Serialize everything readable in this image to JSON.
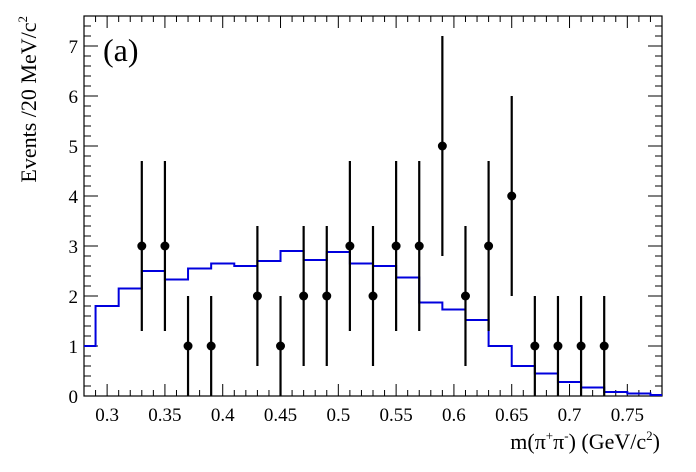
{
  "chart_data": {
    "type": "scatter",
    "panel_label": "(a)",
    "xlabel": {
      "base": "m(",
      "pi1": "π",
      "sup1": "+",
      "pi2": "π",
      "sup2": "-",
      "after": ") (GeV/c",
      "sup3": "2",
      "close": ")"
    },
    "ylabel": {
      "base": "Events /20 MeV/c",
      "sup": "2"
    },
    "xlim": [
      0.28,
      0.78
    ],
    "ylim": [
      0,
      7.6
    ],
    "x_ticks": [
      0.3,
      0.35,
      0.4,
      0.45,
      0.5,
      0.55,
      0.6,
      0.65,
      0.7,
      0.75
    ],
    "x_tick_labels": [
      "0.3",
      "0.35",
      "0.4",
      "0.45",
      "0.5",
      "0.55",
      "0.6",
      "0.65",
      "0.7",
      "0.75"
    ],
    "y_ticks": [
      0,
      1,
      2,
      3,
      4,
      5,
      6,
      7
    ],
    "y_tick_labels": [
      "0",
      "1",
      "2",
      "3",
      "4",
      "5",
      "6",
      "7"
    ],
    "grid": false,
    "colors": {
      "data": "#000000",
      "histogram": "#0000dd",
      "frame": "#000000"
    },
    "series": [
      {
        "type": "errorbar",
        "x": [
          0.33,
          0.35,
          0.37,
          0.39,
          0.43,
          0.45,
          0.47,
          0.49,
          0.51,
          0.53,
          0.55,
          0.57,
          0.59,
          0.61,
          0.63,
          0.65,
          0.67,
          0.69,
          0.71,
          0.73
        ],
        "y": [
          3,
          3,
          1,
          1,
          2,
          1,
          2,
          2,
          3,
          2,
          3,
          3,
          5,
          2,
          3,
          4,
          1,
          1,
          1,
          1
        ],
        "err_low": [
          1.7,
          1.7,
          1.0,
          1.0,
          1.4,
          1.0,
          1.4,
          1.4,
          1.7,
          1.4,
          1.7,
          1.7,
          2.2,
          1.4,
          1.7,
          2.0,
          1.0,
          1.0,
          1.0,
          1.0
        ],
        "err_high": [
          1.7,
          1.7,
          1.0,
          1.0,
          1.4,
          1.0,
          1.4,
          1.4,
          1.7,
          1.4,
          1.7,
          1.7,
          2.2,
          1.4,
          1.7,
          2.0,
          1.0,
          1.0,
          1.0,
          1.0
        ]
      },
      {
        "type": "step-histogram",
        "bin_edges": [
          0.28,
          0.29,
          0.31,
          0.33,
          0.35,
          0.37,
          0.39,
          0.41,
          0.43,
          0.45,
          0.47,
          0.49,
          0.51,
          0.53,
          0.55,
          0.57,
          0.59,
          0.61,
          0.63,
          0.65,
          0.67,
          0.69,
          0.71,
          0.73,
          0.75,
          0.77,
          0.78
        ],
        "values": [
          1.0,
          1.8,
          2.15,
          2.5,
          2.33,
          2.55,
          2.65,
          2.6,
          2.7,
          2.9,
          2.72,
          2.88,
          2.65,
          2.6,
          2.37,
          1.87,
          1.73,
          1.52,
          1.0,
          0.6,
          0.45,
          0.28,
          0.17,
          0.08,
          0.05,
          0.02
        ]
      }
    ]
  }
}
